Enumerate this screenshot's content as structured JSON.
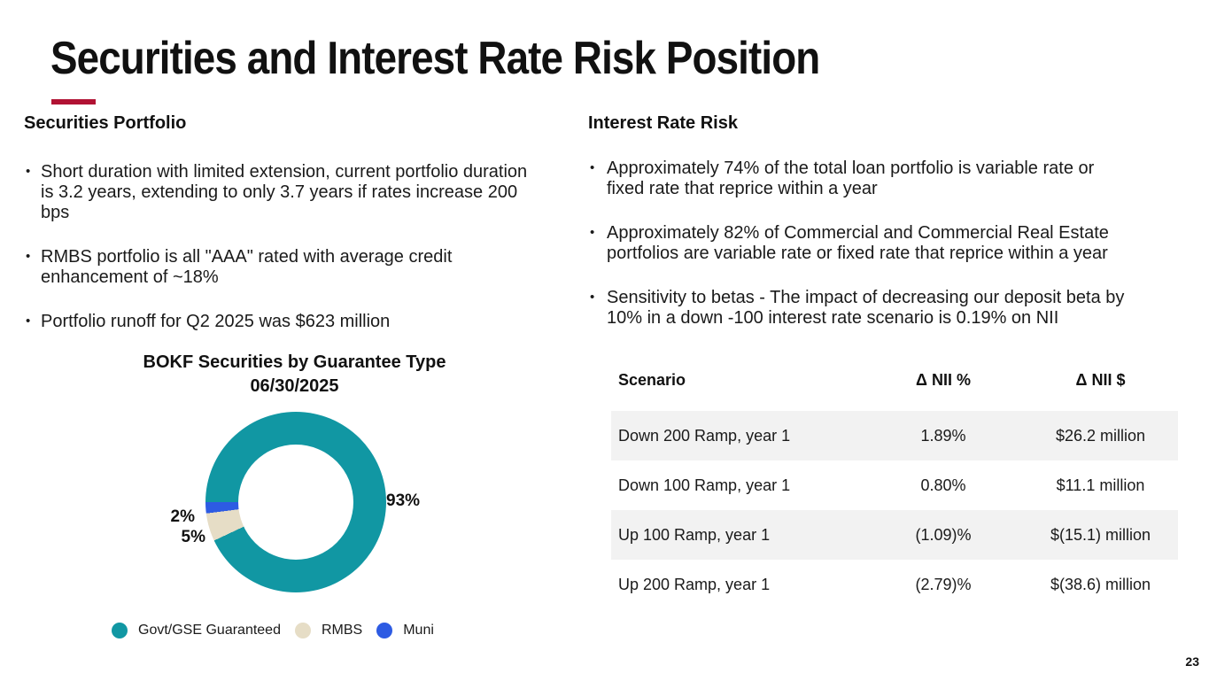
{
  "slide": {
    "title": "Securities and Interest Rate Risk Position",
    "page_number": "23"
  },
  "colors": {
    "accent_red": "#b11233",
    "table_stripe": "#f2f2f2",
    "text": "#1a1a1a"
  },
  "securities_portfolio": {
    "heading": "Securities Portfolio",
    "bullets": [
      "Short duration with limited extension, current portfolio duration is 3.2 years, extending to only 3.7 years if rates increase 200 bps",
      "RMBS portfolio is all \"AAA\" rated with average credit enhancement of  ~18%",
      "Portfolio runoff for Q2 2025 was $623 million"
    ]
  },
  "interest_rate_risk": {
    "heading": "Interest Rate Risk",
    "bullets": [
      "Approximately 74% of the total loan portfolio is variable rate or fixed rate that reprice within a year",
      "Approximately 82% of Commercial and Commercial Real Estate portfolios are variable rate or fixed rate that reprice within a year",
      "Sensitivity to betas - The impact of decreasing our deposit beta by 10% in a down -100 interest rate scenario is 0.19% on NII"
    ],
    "table": {
      "headers": [
        "Scenario",
        "Δ NII %",
        "Δ NII $"
      ],
      "rows": [
        {
          "scenario": "Down 200 Ramp, year 1",
          "nii_pct": "1.89%",
          "nii_dollar": "$26.2 million"
        },
        {
          "scenario": "Down 100 Ramp, year 1",
          "nii_pct": "0.80%",
          "nii_dollar": "$11.1 million"
        },
        {
          "scenario": "Up 100 Ramp, year 1",
          "nii_pct": "(1.09)%",
          "nii_dollar": "$(15.1) million"
        },
        {
          "scenario": "Up 200 Ramp, year 1",
          "nii_pct": "(2.79)%",
          "nii_dollar": "$(38.6) million"
        }
      ]
    }
  },
  "chart_data": {
    "type": "pie",
    "donut": true,
    "title": "BOKF Securities by Guarantee Type",
    "subtitle": "06/30/2025",
    "categories": [
      "Govt/GSE Guaranteed",
      "RMBS",
      "Muni"
    ],
    "values": [
      93,
      5,
      2
    ],
    "unit": "%",
    "value_labels": [
      "93%",
      "5%",
      "2%"
    ],
    "colors": [
      "#1197a3",
      "#e6ddc6",
      "#2d5be3"
    ],
    "start_angle_deg": 270,
    "legend_position": "bottom"
  }
}
